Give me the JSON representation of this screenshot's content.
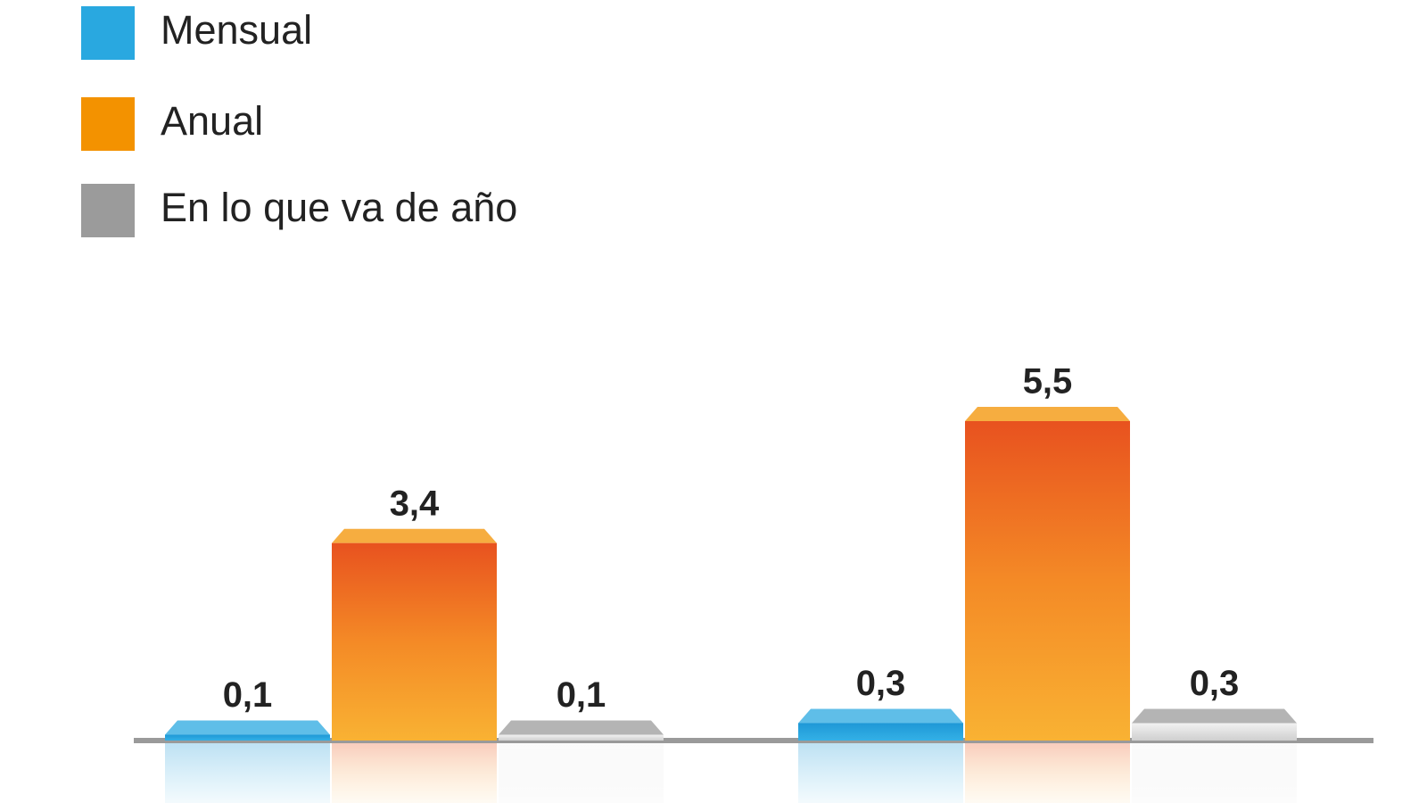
{
  "chart_data": {
    "type": "bar",
    "categories": [
      null,
      null
    ],
    "series": [
      {
        "name": "Mensual",
        "color": "#29a8e0",
        "values": [
          0.1,
          0.3
        ],
        "value_labels": [
          "0,1",
          "0,3"
        ]
      },
      {
        "name": "Anual",
        "color": "#f39200",
        "values": [
          3.4,
          5.5
        ],
        "value_labels": [
          "3,4",
          "5,5"
        ]
      },
      {
        "name": "En lo que va de año",
        "color": "#9b9b9b",
        "values": [
          0.1,
          0.3
        ],
        "value_labels": [
          "0,1",
          "0,3"
        ]
      }
    ]
  }
}
